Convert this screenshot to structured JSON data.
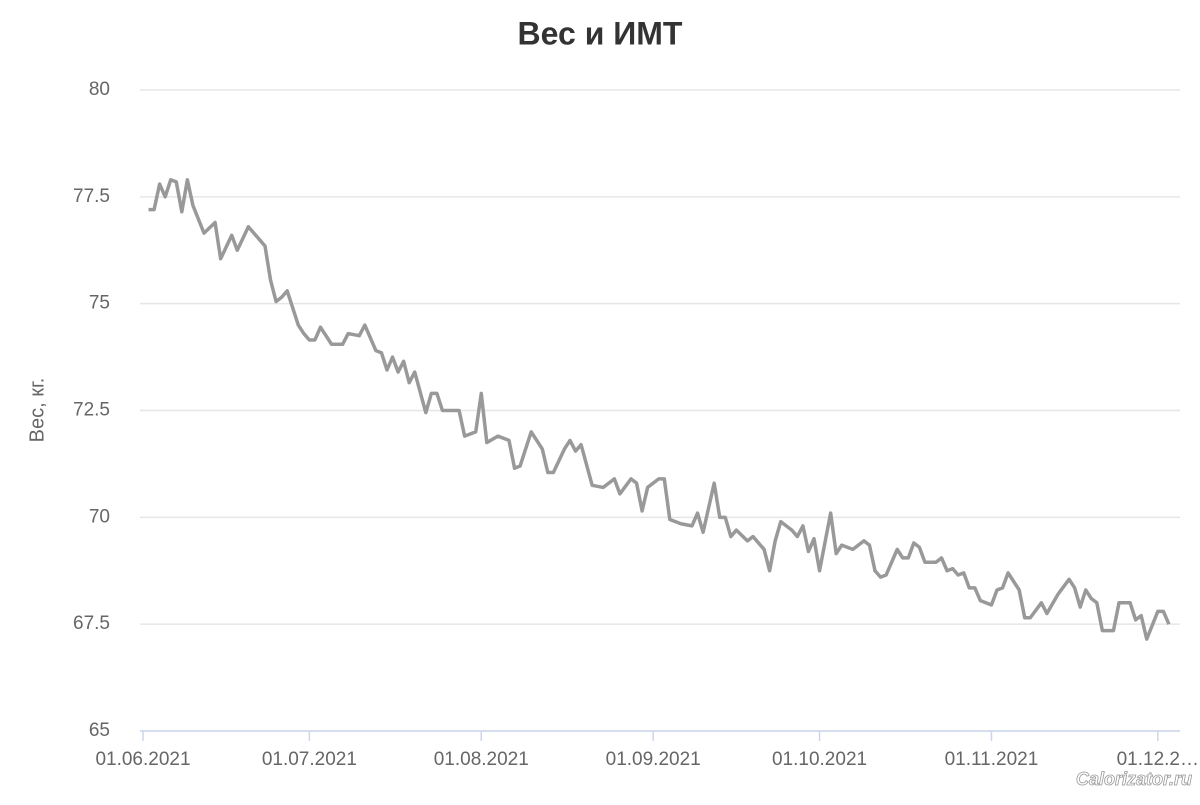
{
  "chart_data": {
    "type": "line",
    "title": "Вес и ИМТ",
    "y_label": "Вес, кг.",
    "watermark": "Calorizator.ru",
    "color": "#999999",
    "grid": true,
    "ylim": [
      65,
      80
    ],
    "yticks": [
      65,
      67.5,
      70,
      72.5,
      75,
      77.5,
      80
    ],
    "xlim": [
      "01.06.2021",
      "05.12.2021"
    ],
    "xticks": [
      "01.06.2021",
      "01.07.2021",
      "01.08.2021",
      "01.09.2021",
      "01.10.2021",
      "01.11.2021",
      {
        "value": "01.12.2021",
        "label": "01.12.2…"
      }
    ],
    "x": [
      "02.06.2021",
      "03.06.2021",
      "04.06.2021",
      "05.06.2021",
      "06.06.2021",
      "07.06.2021",
      "08.06.2021",
      "09.06.2021",
      "10.06.2021",
      "12.06.2021",
      "14.06.2021",
      "15.06.2021",
      "17.06.2021",
      "18.06.2021",
      "20.06.2021",
      "22.06.2021",
      "23.06.2021",
      "24.06.2021",
      "25.06.2021",
      "26.06.2021",
      "27.06.2021",
      "29.06.2021",
      "30.06.2021",
      "01.07.2021",
      "02.07.2021",
      "03.07.2021",
      "04.07.2021",
      "05.07.2021",
      "07.07.2021",
      "08.07.2021",
      "10.07.2021",
      "11.07.2021",
      "13.07.2021",
      "14.07.2021",
      "15.07.2021",
      "16.07.2021",
      "17.07.2021",
      "18.07.2021",
      "19.07.2021",
      "20.07.2021",
      "22.07.2021",
      "23.07.2021",
      "24.07.2021",
      "25.07.2021",
      "27.07.2021",
      "28.07.2021",
      "29.07.2021",
      "31.07.2021",
      "01.08.2021",
      "02.08.2021",
      "04.08.2021",
      "06.08.2021",
      "07.08.2021",
      "08.08.2021",
      "10.08.2021",
      "12.08.2021",
      "13.08.2021",
      "14.08.2021",
      "16.08.2021",
      "17.08.2021",
      "18.08.2021",
      "19.08.2021",
      "21.08.2021",
      "23.08.2021",
      "25.08.2021",
      "26.08.2021",
      "28.08.2021",
      "29.08.2021",
      "30.08.2021",
      "31.08.2021",
      "02.09.2021",
      "03.09.2021",
      "04.09.2021",
      "06.09.2021",
      "08.09.2021",
      "09.09.2021",
      "10.09.2021",
      "12.09.2021",
      "13.09.2021",
      "14.09.2021",
      "15.09.2021",
      "16.09.2021",
      "18.09.2021",
      "19.09.2021",
      "21.09.2021",
      "22.09.2021",
      "23.09.2021",
      "24.09.2021",
      "26.09.2021",
      "27.09.2021",
      "28.09.2021",
      "29.09.2021",
      "30.09.2021",
      "01.10.2021",
      "03.10.2021",
      "04.10.2021",
      "05.10.2021",
      "07.10.2021",
      "09.10.2021",
      "10.10.2021",
      "11.10.2021",
      "12.10.2021",
      "13.10.2021",
      "15.10.2021",
      "16.10.2021",
      "17.10.2021",
      "18.10.2021",
      "19.10.2021",
      "20.10.2021",
      "22.10.2021",
      "23.10.2021",
      "24.10.2021",
      "25.10.2021",
      "26.10.2021",
      "27.10.2021",
      "28.10.2021",
      "29.10.2021",
      "30.10.2021",
      "01.11.2021",
      "02.11.2021",
      "03.11.2021",
      "04.11.2021",
      "06.11.2021",
      "07.11.2021",
      "08.11.2021",
      "10.11.2021",
      "11.11.2021",
      "13.11.2021",
      "15.11.2021",
      "16.11.2021",
      "17.11.2021",
      "18.11.2021",
      "19.11.2021",
      "20.11.2021",
      "21.11.2021",
      "23.11.2021",
      "24.11.2021",
      "26.11.2021",
      "27.11.2021",
      "28.11.2021",
      "29.11.2021",
      "01.12.2021",
      "02.12.2021",
      "03.12.2021"
    ],
    "values": [
      77.2,
      77.2,
      77.8,
      77.5,
      77.9,
      77.85,
      77.15,
      77.9,
      77.3,
      76.65,
      76.9,
      76.05,
      76.6,
      76.25,
      76.8,
      76.5,
      76.35,
      75.55,
      75.05,
      75.15,
      75.3,
      74.5,
      74.3,
      74.15,
      74.15,
      74.45,
      74.25,
      74.05,
      74.05,
      74.3,
      74.25,
      74.5,
      73.9,
      73.85,
      73.45,
      73.75,
      73.4,
      73.65,
      73.15,
      73.4,
      72.45,
      72.9,
      72.9,
      72.5,
      72.5,
      72.5,
      71.9,
      72.0,
      72.9,
      71.75,
      71.9,
      71.8,
      71.15,
      71.2,
      72.0,
      71.6,
      71.05,
      71.05,
      71.6,
      71.8,
      71.55,
      71.7,
      70.75,
      70.7,
      70.9,
      70.55,
      70.9,
      70.8,
      70.15,
      70.7,
      70.9,
      70.9,
      69.95,
      69.85,
      69.8,
      70.1,
      69.65,
      70.8,
      70.0,
      70.0,
      69.55,
      69.7,
      69.45,
      69.55,
      69.25,
      68.75,
      69.45,
      69.9,
      69.7,
      69.55,
      69.8,
      69.2,
      69.5,
      68.75,
      70.1,
      69.15,
      69.35,
      69.25,
      69.45,
      69.35,
      68.75,
      68.6,
      68.65,
      69.25,
      69.05,
      69.05,
      69.4,
      69.3,
      68.95,
      68.95,
      69.05,
      68.75,
      68.8,
      68.65,
      68.7,
      68.35,
      68.35,
      68.05,
      67.95,
      68.3,
      68.35,
      68.7,
      68.3,
      67.65,
      67.65,
      68.0,
      67.75,
      68.2,
      68.55,
      68.35,
      67.9,
      68.3,
      68.1,
      68.0,
      67.35,
      67.35,
      68.0,
      68.0,
      67.6,
      67.7,
      67.15,
      67.8,
      67.8,
      67.5
    ]
  }
}
